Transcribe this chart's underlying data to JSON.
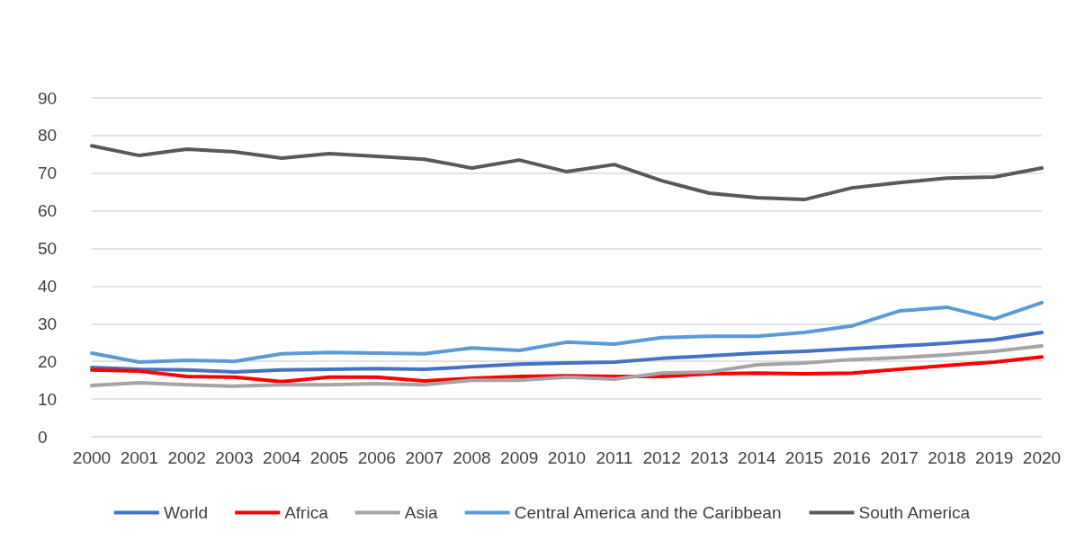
{
  "chart_data": {
    "type": "line",
    "categories": [
      "2000",
      "2001",
      "2002",
      "2003",
      "2004",
      "2005",
      "2006",
      "2007",
      "2008",
      "2009",
      "2010",
      "2011",
      "2012",
      "2013",
      "2014",
      "2015",
      "2016",
      "2017",
      "2018",
      "2019",
      "2020"
    ],
    "series": [
      {
        "name": "World",
        "color": "#4472c4",
        "values": [
          18.4,
          17.9,
          17.7,
          17.2,
          17.7,
          17.9,
          18.1,
          17.9,
          18.6,
          19.3,
          19.6,
          19.8,
          20.8,
          21.5,
          22.2,
          22.7,
          23.4,
          24.1,
          24.8,
          25.8,
          27.7
        ]
      },
      {
        "name": "Africa",
        "color": "#ff0000",
        "values": [
          17.7,
          17.4,
          16.0,
          15.8,
          14.6,
          15.8,
          15.8,
          14.8,
          15.5,
          16.0,
          16.2,
          16.0,
          16.0,
          16.7,
          16.9,
          16.7,
          16.9,
          17.9,
          18.9,
          19.8,
          21.2
        ]
      },
      {
        "name": "Asia",
        "color": "#a5a5a5",
        "values": [
          13.6,
          14.3,
          13.8,
          13.4,
          13.8,
          13.8,
          14.1,
          13.8,
          15.0,
          15.0,
          15.8,
          15.3,
          16.9,
          17.2,
          19.1,
          19.6,
          20.5,
          21.0,
          21.7,
          22.7,
          24.1
        ]
      },
      {
        "name": "Central America and the Caribbean",
        "color": "#5b9bd5",
        "values": [
          22.2,
          19.8,
          20.3,
          20.0,
          22.0,
          22.4,
          22.2,
          22.0,
          23.6,
          22.9,
          25.1,
          24.6,
          26.3,
          26.7,
          26.7,
          27.7,
          29.4,
          33.4,
          34.4,
          31.3,
          35.6
        ]
      },
      {
        "name": "South America",
        "color": "#595959",
        "values": [
          77.3,
          74.7,
          76.4,
          75.7,
          74.0,
          75.2,
          74.5,
          73.7,
          71.4,
          73.5,
          70.4,
          72.3,
          68.0,
          64.7,
          63.5,
          63.0,
          66.1,
          67.5,
          68.7,
          69.0,
          71.4
        ]
      }
    ],
    "ylim": [
      0,
      90
    ],
    "yticks": [
      0,
      10,
      20,
      30,
      40,
      50,
      60,
      70,
      80,
      90
    ],
    "grid": "y",
    "legend": "bottom",
    "marker": "none",
    "line_style": "solid"
  }
}
